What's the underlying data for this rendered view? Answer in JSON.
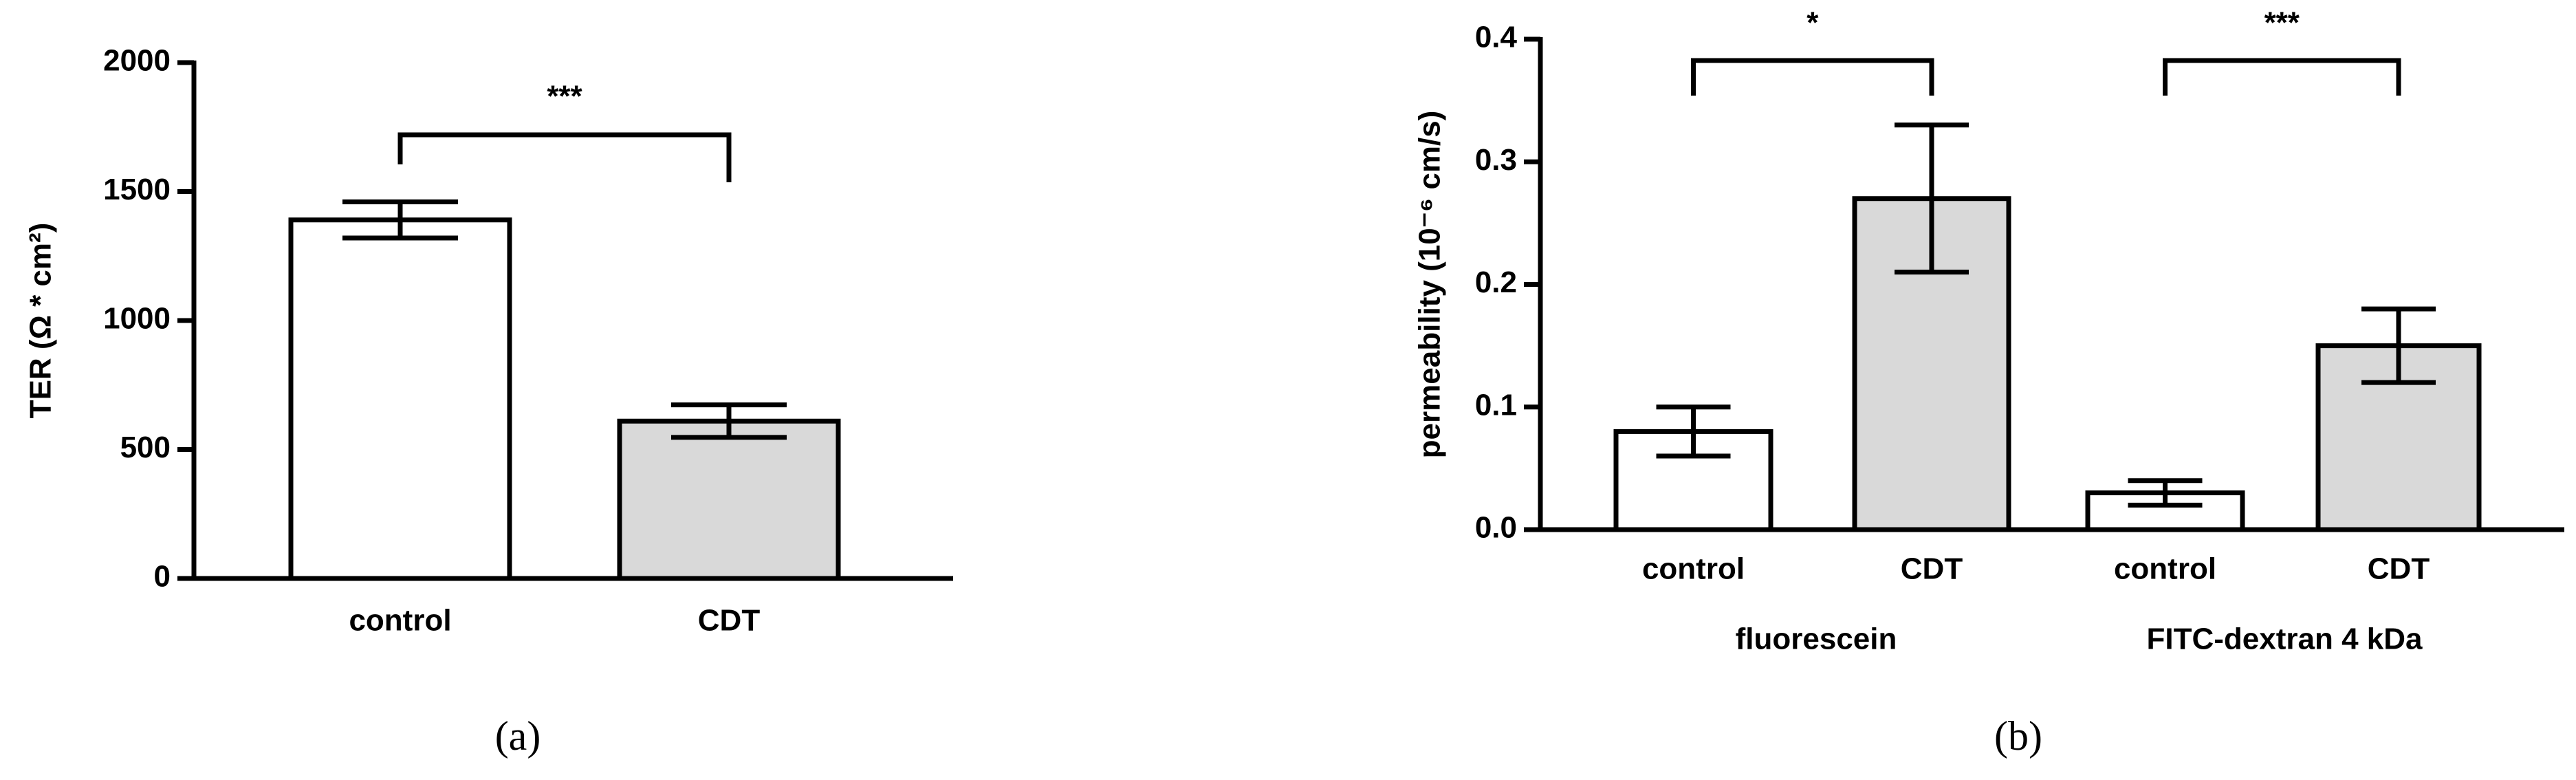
{
  "chart_data": [
    {
      "type": "bar",
      "y_label": "TER (Ω * cm²)",
      "categories": [
        "control",
        "CDT"
      ],
      "values": [
        1390,
        610
      ],
      "errors": [
        70,
        63
      ],
      "colors": [
        "#ffffff",
        "#d9d9d9"
      ],
      "ylim": [
        0,
        2000
      ],
      "yticks": [
        0,
        500,
        1000,
        1500,
        2000
      ],
      "annotations": [
        "***"
      ],
      "panel_label": "(a)"
    },
    {
      "type": "bar",
      "y_label": "permeability (10⁻⁶ cm/s)",
      "categories": [
        "control",
        "CDT",
        "control",
        "CDT"
      ],
      "groups": [
        "fluorescein",
        "FITC-dextran 4 kDa"
      ],
      "values": [
        0.08,
        0.27,
        0.03,
        0.15
      ],
      "errors": [
        0.02,
        0.06,
        0.01,
        0.03
      ],
      "colors": [
        "#ffffff",
        "#d9d9d9",
        "#ffffff",
        "#d9d9d9"
      ],
      "ylim": [
        0,
        0.4
      ],
      "yticks": [
        {
          "value": 0,
          "label": "0.0"
        },
        0.1,
        0.2,
        0.3,
        0.4
      ],
      "annotations": [
        "*",
        "***"
      ],
      "panel_label": "(b)"
    }
  ]
}
